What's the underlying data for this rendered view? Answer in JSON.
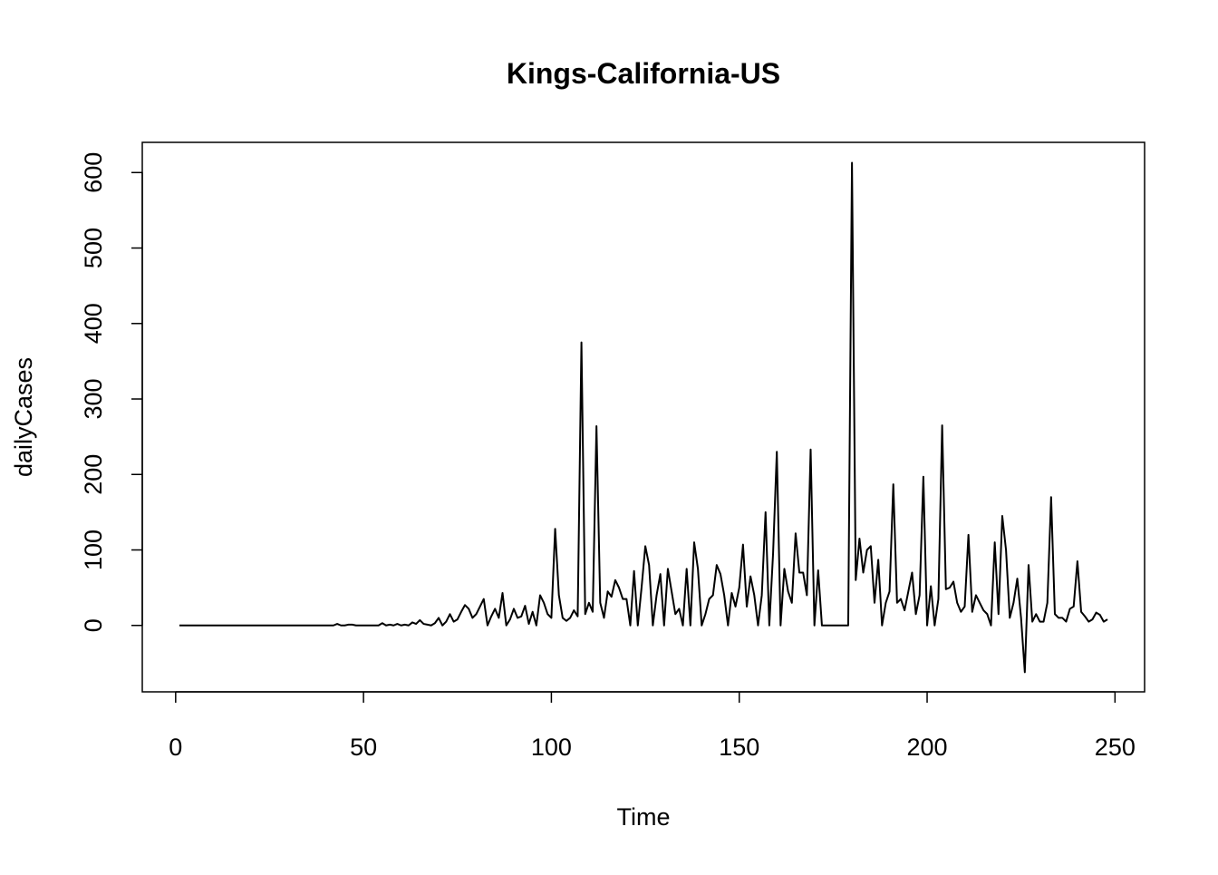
{
  "chart_data": {
    "type": "line",
    "title": "Kings-California-US",
    "xlabel": "Time",
    "ylabel": "dailyCases",
    "color": "#000000",
    "x": [
      1,
      2,
      3,
      4,
      5,
      6,
      7,
      8,
      9,
      10,
      11,
      12,
      13,
      14,
      15,
      16,
      17,
      18,
      19,
      20,
      21,
      22,
      23,
      24,
      25,
      26,
      27,
      28,
      29,
      30,
      31,
      32,
      33,
      34,
      35,
      36,
      37,
      38,
      39,
      40,
      41,
      42,
      43,
      44,
      45,
      46,
      47,
      48,
      49,
      50,
      51,
      52,
      53,
      54,
      55,
      56,
      57,
      58,
      59,
      60,
      61,
      62,
      63,
      64,
      65,
      66,
      67,
      68,
      69,
      70,
      71,
      72,
      73,
      74,
      75,
      76,
      77,
      78,
      79,
      80,
      81,
      82,
      83,
      84,
      85,
      86,
      87,
      88,
      89,
      90,
      91,
      92,
      93,
      94,
      95,
      96,
      97,
      98,
      99,
      100,
      101,
      102,
      103,
      104,
      105,
      106,
      107,
      108,
      109,
      110,
      111,
      112,
      113,
      114,
      115,
      116,
      117,
      118,
      119,
      120,
      121,
      122,
      123,
      124,
      125,
      126,
      127,
      128,
      129,
      130,
      131,
      132,
      133,
      134,
      135,
      136,
      137,
      138,
      139,
      140,
      141,
      142,
      143,
      144,
      145,
      146,
      147,
      148,
      149,
      150,
      151,
      152,
      153,
      154,
      155,
      156,
      157,
      158,
      159,
      160,
      161,
      162,
      163,
      164,
      165,
      166,
      167,
      168,
      169,
      170,
      171,
      172,
      173,
      174,
      175,
      176,
      177,
      178,
      179,
      180,
      181,
      182,
      183,
      184,
      185,
      186,
      187,
      188,
      189,
      190,
      191,
      192,
      193,
      194,
      195,
      196,
      197,
      198,
      199,
      200,
      201,
      202,
      203,
      204,
      205,
      206,
      207,
      208,
      209,
      210,
      211,
      212,
      213,
      214,
      215,
      216,
      217,
      218,
      219,
      220,
      221,
      222,
      223,
      224,
      225,
      226,
      227,
      228,
      229,
      230,
      231,
      232,
      233,
      234,
      235,
      236,
      237,
      238,
      239,
      240,
      241,
      242,
      243,
      244,
      245,
      246,
      247,
      248
    ],
    "values": [
      0,
      0,
      0,
      0,
      0,
      0,
      0,
      0,
      0,
      0,
      0,
      0,
      0,
      0,
      0,
      0,
      0,
      0,
      0,
      0,
      0,
      0,
      0,
      0,
      0,
      0,
      0,
      0,
      0,
      0,
      0,
      0,
      0,
      0,
      0,
      0,
      0,
      0,
      0,
      0,
      0,
      0,
      2,
      0,
      0,
      1,
      1,
      0,
      0,
      0,
      0,
      0,
      0,
      0,
      3,
      0,
      1,
      0,
      2,
      0,
      1,
      0,
      4,
      2,
      7,
      2,
      1,
      0,
      3,
      10,
      0,
      5,
      15,
      5,
      8,
      18,
      27,
      22,
      10,
      15,
      25,
      35,
      0,
      12,
      22,
      10,
      43,
      0,
      8,
      22,
      10,
      12,
      26,
      2,
      18,
      0,
      40,
      30,
      15,
      10,
      128,
      40,
      10,
      6,
      10,
      20,
      12,
      375,
      15,
      30,
      18,
      264,
      30,
      10,
      45,
      38,
      60,
      50,
      35,
      35,
      0,
      72,
      0,
      50,
      105,
      80,
      0,
      40,
      68,
      0,
      75,
      45,
      15,
      22,
      0,
      75,
      0,
      110,
      75,
      0,
      15,
      35,
      40,
      80,
      68,
      40,
      0,
      43,
      25,
      50,
      107,
      25,
      65,
      40,
      0,
      40,
      150,
      0,
      95,
      230,
      0,
      75,
      45,
      30,
      122,
      70,
      70,
      40,
      233,
      0,
      73,
      0,
      0,
      0,
      0,
      0,
      0,
      0,
      0,
      613,
      60,
      115,
      70,
      100,
      105,
      30,
      87,
      0,
      30,
      45,
      187,
      30,
      35,
      20,
      45,
      70,
      15,
      40,
      197,
      0,
      52,
      0,
      35,
      265,
      48,
      50,
      58,
      30,
      18,
      25,
      120,
      18,
      40,
      30,
      20,
      15,
      0,
      110,
      15,
      145,
      100,
      10,
      30,
      62,
      10,
      -62,
      80,
      5,
      15,
      5,
      5,
      30,
      170,
      15,
      10,
      10,
      5,
      22,
      25,
      85,
      18,
      12,
      5,
      8,
      17,
      14,
      5,
      8
    ],
    "xlim": [
      -8.88,
      257.88
    ],
    "ylim": [
      -88,
      640
    ],
    "xticks": [
      0,
      50,
      100,
      150,
      200,
      250
    ],
    "yticks": [
      0,
      100,
      200,
      300,
      400,
      500,
      600
    ]
  }
}
